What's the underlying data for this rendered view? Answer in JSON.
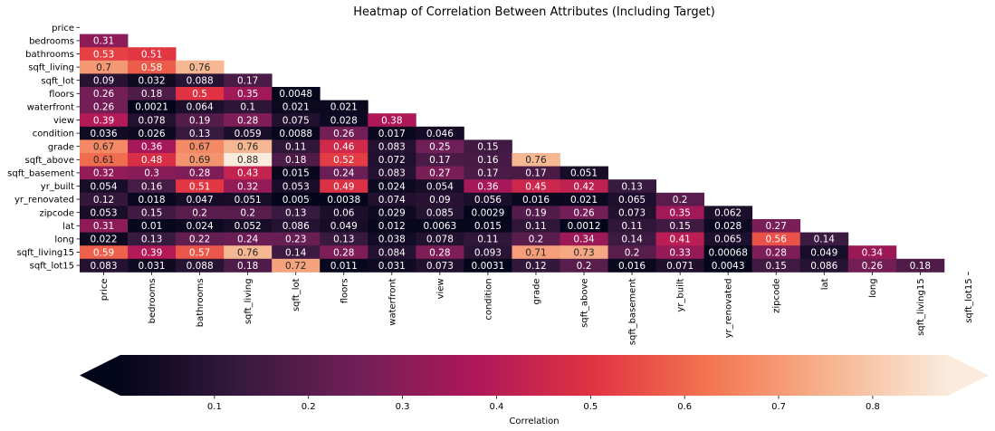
{
  "chart_data": {
    "type": "heatmap",
    "title": "Heatmap of Correlation Between Attributes (Including Target)",
    "labels": [
      "price",
      "bedrooms",
      "bathrooms",
      "sqft_living",
      "sqft_lot",
      "floors",
      "waterfront",
      "view",
      "condition",
      "grade",
      "sqft_above",
      "sqft_basement",
      "yr_built",
      "yr_renovated",
      "zipcode",
      "lat",
      "long",
      "sqft_living15",
      "sqft_lot15"
    ],
    "lower_triangle": [
      [],
      [
        "0.31"
      ],
      [
        "0.53",
        "0.51"
      ],
      [
        "0.7",
        "0.58",
        "0.76"
      ],
      [
        "0.09",
        "0.032",
        "0.088",
        "0.17"
      ],
      [
        "0.26",
        "0.18",
        "0.5",
        "0.35",
        "0.0048"
      ],
      [
        "0.26",
        "0.0021",
        "0.064",
        "0.1",
        "0.021",
        "0.021"
      ],
      [
        "0.39",
        "0.078",
        "0.19",
        "0.28",
        "0.075",
        "0.028",
        "0.38"
      ],
      [
        "0.036",
        "0.026",
        "0.13",
        "0.059",
        "0.0088",
        "0.26",
        "0.017",
        "0.046"
      ],
      [
        "0.67",
        "0.36",
        "0.67",
        "0.76",
        "0.11",
        "0.46",
        "0.083",
        "0.25",
        "0.15"
      ],
      [
        "0.61",
        "0.48",
        "0.69",
        "0.88",
        "0.18",
        "0.52",
        "0.072",
        "0.17",
        "0.16",
        "0.76"
      ],
      [
        "0.32",
        "0.3",
        "0.28",
        "0.43",
        "0.015",
        "0.24",
        "0.083",
        "0.27",
        "0.17",
        "0.17",
        "0.051"
      ],
      [
        "0.054",
        "0.16",
        "0.51",
        "0.32",
        "0.053",
        "0.49",
        "0.024",
        "0.054",
        "0.36",
        "0.45",
        "0.42",
        "0.13"
      ],
      [
        "0.12",
        "0.018",
        "0.047",
        "0.051",
        "0.005",
        "0.0038",
        "0.074",
        "0.09",
        "0.056",
        "0.016",
        "0.021",
        "0.065",
        "0.2"
      ],
      [
        "0.053",
        "0.15",
        "0.2",
        "0.2",
        "0.13",
        "0.06",
        "0.029",
        "0.085",
        "0.0029",
        "0.19",
        "0.26",
        "0.073",
        "0.35",
        "0.062"
      ],
      [
        "0.31",
        "0.01",
        "0.024",
        "0.052",
        "0.086",
        "0.049",
        "0.012",
        "0.0063",
        "0.015",
        "0.11",
        "0.0012",
        "0.11",
        "0.15",
        "0.028",
        "0.27"
      ],
      [
        "0.022",
        "0.13",
        "0.22",
        "0.24",
        "0.23",
        "0.13",
        "0.038",
        "0.078",
        "0.11",
        "0.2",
        "0.34",
        "0.14",
        "0.41",
        "0.065",
        "0.56",
        "0.14"
      ],
      [
        "0.59",
        "0.39",
        "0.57",
        "0.76",
        "0.14",
        "0.28",
        "0.084",
        "0.28",
        "0.093",
        "0.71",
        "0.73",
        "0.2",
        "0.33",
        "0.00068",
        "0.28",
        "0.049",
        "0.34"
      ],
      [
        "0.083",
        "0.031",
        "0.088",
        "0.18",
        "0.72",
        "0.011",
        "0.031",
        "0.073",
        "0.0031",
        "0.12",
        "0.2",
        "0.016",
        "0.071",
        "0.0043",
        "0.15",
        "0.086",
        "0.26",
        "0.18"
      ]
    ],
    "colorbar": {
      "label": "Correlation",
      "ticks": [
        "0.1",
        "0.2",
        "0.3",
        "0.4",
        "0.5",
        "0.6",
        "0.7",
        "0.8"
      ],
      "range": [
        0,
        0.88
      ],
      "extend": "both",
      "orientation": "horizontal",
      "colormap": [
        "#03051a",
        "#36193e",
        "#701f57",
        "#ae1759",
        "#e13342",
        "#f37651",
        "#f6b48f",
        "#faebdd"
      ]
    }
  }
}
